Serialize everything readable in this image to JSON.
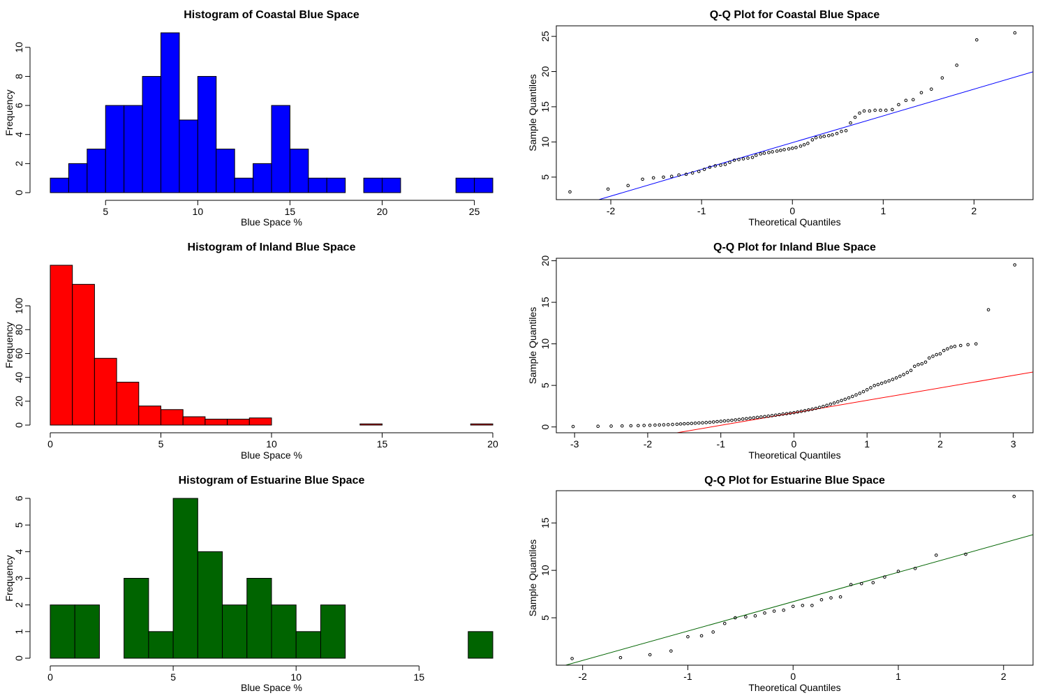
{
  "chart_data": [
    {
      "type": "bar",
      "title": "Histogram of Coastal Blue Space",
      "xlabel": "Blue Space %",
      "ylabel": "Frequency",
      "color": "#0000ff",
      "bin_edges": [
        2,
        3,
        4,
        5,
        6,
        7,
        8,
        9,
        10,
        11,
        12,
        13,
        14,
        15,
        16,
        17,
        18,
        19,
        20,
        21,
        22,
        23,
        24,
        25,
        26
      ],
      "values": [
        1,
        2,
        3,
        6,
        6,
        8,
        11,
        5,
        8,
        3,
        1,
        2,
        6,
        3,
        1,
        1,
        0,
        1,
        1,
        0,
        0,
        0,
        1,
        1
      ],
      "xlim": [
        2,
        26
      ],
      "ylim": [
        0,
        11
      ],
      "xticks": [
        "5",
        "10",
        "15",
        "20",
        "25"
      ],
      "yticks": [
        "0",
        "2",
        "4",
        "6",
        "8",
        "10"
      ]
    },
    {
      "type": "scatter",
      "title": "Q-Q Plot for Coastal Blue Space",
      "xlabel": "Theoretical Quantiles",
      "ylabel": "Sample Quantiles",
      "line_color": "#0000ff",
      "line": {
        "intercept": 9.9,
        "slope": 3.8
      },
      "xlim": [
        -2.6,
        2.65
      ],
      "ylim": [
        1.8,
        26.5
      ],
      "xticks": [
        "-2",
        "-1",
        "0",
        "1",
        "2"
      ],
      "yticks": [
        "5",
        "10",
        "15",
        "20",
        "25"
      ],
      "x": [
        -2.45,
        -2.03,
        -1.81,
        -1.65,
        -1.53,
        -1.42,
        -1.33,
        -1.25,
        -1.17,
        -1.1,
        -1.03,
        -0.97,
        -0.91,
        -0.85,
        -0.79,
        -0.74,
        -0.69,
        -0.64,
        -0.59,
        -0.54,
        -0.49,
        -0.44,
        -0.4,
        -0.35,
        -0.31,
        -0.26,
        -0.22,
        -0.17,
        -0.13,
        -0.09,
        -0.04,
        0.0,
        0.04,
        0.09,
        0.13,
        0.17,
        0.22,
        0.26,
        0.31,
        0.35,
        0.4,
        0.44,
        0.49,
        0.54,
        0.59,
        0.64,
        0.69,
        0.74,
        0.79,
        0.85,
        0.91,
        0.97,
        1.03,
        1.1,
        1.17,
        1.25,
        1.33,
        1.42,
        1.53,
        1.65,
        1.81,
        2.03,
        2.45
      ],
      "y": [
        2.9,
        3.3,
        3.8,
        4.7,
        4.9,
        5.0,
        5.1,
        5.3,
        5.4,
        5.6,
        5.8,
        6.1,
        6.4,
        6.6,
        6.7,
        6.8,
        7.1,
        7.4,
        7.5,
        7.6,
        7.7,
        7.8,
        8.1,
        8.3,
        8.4,
        8.5,
        8.6,
        8.7,
        8.8,
        8.9,
        9.0,
        9.1,
        9.2,
        9.4,
        9.6,
        9.8,
        10.3,
        10.6,
        10.7,
        10.8,
        10.9,
        11.0,
        11.2,
        11.5,
        11.6,
        12.7,
        13.5,
        14.1,
        14.4,
        14.4,
        14.5,
        14.5,
        14.5,
        14.6,
        15.3,
        15.9,
        16.0,
        17.0,
        17.5,
        19.1,
        20.9,
        24.5,
        25.5
      ]
    },
    {
      "type": "bar",
      "title": "Histogram of Inland Blue Space",
      "xlabel": "Blue Space %",
      "ylabel": "Frequency",
      "color": "#ff0000",
      "bin_edges": [
        0,
        1,
        2,
        3,
        4,
        5,
        6,
        7,
        8,
        9,
        10,
        11,
        12,
        13,
        14,
        15,
        16,
        17,
        18,
        19,
        20
      ],
      "values": [
        134,
        118,
        56,
        36,
        16,
        13,
        7,
        5,
        5,
        6,
        0,
        0,
        0,
        0,
        1,
        0,
        0,
        0,
        0,
        1
      ],
      "xlim": [
        0,
        20
      ],
      "ylim": [
        0,
        134
      ],
      "xticks": [
        "0",
        "5",
        "10",
        "15",
        "20"
      ],
      "yticks": [
        "0",
        "20",
        "40",
        "60",
        "80",
        "100"
      ]
    },
    {
      "type": "scatter",
      "title": "Q-Q Plot for Inland Blue Space",
      "xlabel": "Theoretical Quantiles",
      "ylabel": "Sample Quantiles",
      "line_color": "#ff0000",
      "line": {
        "intercept": 1.7,
        "slope": 1.5
      },
      "xlim": [
        -3.25,
        3.27
      ],
      "ylim": [
        -0.7,
        20.3
      ],
      "xticks": [
        "-3",
        "-2",
        "-1",
        "0",
        "1",
        "2",
        "3"
      ],
      "yticks": [
        "0",
        "5",
        "10",
        "15",
        "20"
      ],
      "x": [
        -3.02,
        -2.68,
        -2.5,
        -2.35,
        -2.23,
        -2.13,
        -2.05,
        -1.97,
        -1.9,
        -1.84,
        -1.78,
        -1.72,
        -1.66,
        -1.6,
        -1.55,
        -1.5,
        -1.45,
        -1.4,
        -1.35,
        -1.3,
        -1.25,
        -1.2,
        -1.15,
        -1.1,
        -1.05,
        -1.0,
        -0.95,
        -0.9,
        -0.85,
        -0.8,
        -0.75,
        -0.7,
        -0.65,
        -0.6,
        -0.55,
        -0.5,
        -0.45,
        -0.4,
        -0.35,
        -0.3,
        -0.25,
        -0.2,
        -0.15,
        -0.1,
        -0.05,
        0.0,
        0.05,
        0.1,
        0.15,
        0.2,
        0.25,
        0.3,
        0.35,
        0.4,
        0.45,
        0.5,
        0.55,
        0.6,
        0.65,
        0.7,
        0.75,
        0.8,
        0.85,
        0.9,
        0.95,
        1.0,
        1.05,
        1.1,
        1.15,
        1.2,
        1.25,
        1.3,
        1.35,
        1.4,
        1.45,
        1.5,
        1.55,
        1.6,
        1.65,
        1.7,
        1.75,
        1.8,
        1.85,
        1.9,
        1.95,
        2.0,
        2.05,
        2.1,
        2.15,
        2.2,
        2.28,
        2.38,
        2.49,
        2.66,
        3.02
      ],
      "y": [
        0.05,
        0.08,
        0.1,
        0.12,
        0.14,
        0.16,
        0.18,
        0.2,
        0.22,
        0.24,
        0.26,
        0.28,
        0.3,
        0.33,
        0.36,
        0.38,
        0.4,
        0.42,
        0.45,
        0.48,
        0.5,
        0.53,
        0.56,
        0.6,
        0.64,
        0.68,
        0.72,
        0.76,
        0.8,
        0.85,
        0.9,
        0.95,
        1.0,
        1.05,
        1.1,
        1.15,
        1.2,
        1.25,
        1.3,
        1.36,
        1.42,
        1.48,
        1.55,
        1.6,
        1.66,
        1.72,
        1.8,
        1.88,
        1.96,
        2.05,
        2.14,
        2.24,
        2.35,
        2.47,
        2.6,
        2.74,
        2.88,
        3.03,
        3.18,
        3.33,
        3.5,
        3.67,
        3.86,
        4.05,
        4.25,
        4.48,
        4.72,
        4.98,
        5.1,
        5.25,
        5.4,
        5.55,
        5.72,
        5.9,
        6.1,
        6.3,
        6.55,
        6.8,
        7.3,
        7.5,
        7.6,
        7.8,
        8.3,
        8.5,
        8.7,
        8.8,
        9.2,
        9.4,
        9.6,
        9.7,
        9.8,
        9.9,
        10.0,
        14.1,
        19.5
      ]
    },
    {
      "type": "bar",
      "title": "Histogram of Estuarine Blue Space",
      "xlabel": "Blue Space %",
      "ylabel": "Frequency",
      "color": "#006400",
      "bin_edges": [
        0,
        1,
        2,
        3,
        4,
        5,
        6,
        7,
        8,
        9,
        10,
        11,
        12,
        13,
        14,
        15,
        16,
        17,
        18
      ],
      "values": [
        2,
        2,
        0,
        3,
        1,
        6,
        4,
        2,
        3,
        2,
        1,
        2,
        0,
        0,
        0,
        0,
        0,
        1
      ],
      "xlim": [
        0,
        18
      ],
      "ylim": [
        0,
        6
      ],
      "xticks": [
        "0",
        "5",
        "10",
        "15"
      ],
      "yticks": [
        "0",
        "1",
        "2",
        "3",
        "4",
        "5",
        "6"
      ]
    },
    {
      "type": "scatter",
      "title": "Q-Q Plot for Estuarine Blue Space",
      "xlabel": "Theoretical Quantiles",
      "ylabel": "Sample Quantiles",
      "line_color": "#006400",
      "line": {
        "intercept": 6.7,
        "slope": 3.1
      },
      "xlim": [
        -2.25,
        2.28
      ],
      "ylim": [
        0.0,
        18.4
      ],
      "xticks": [
        "-2",
        "-1",
        "0",
        "1",
        "2"
      ],
      "yticks": [
        "5",
        "10",
        "15"
      ],
      "x": [
        -2.1,
        -1.64,
        -1.36,
        -1.16,
        -1.0,
        -0.87,
        -0.76,
        -0.65,
        -0.55,
        -0.45,
        -0.36,
        -0.27,
        -0.18,
        -0.09,
        0.0,
        0.09,
        0.18,
        0.27,
        0.36,
        0.45,
        0.55,
        0.65,
        0.76,
        0.87,
        1.0,
        1.16,
        1.36,
        1.64,
        2.1
      ],
      "y": [
        0.7,
        0.8,
        1.1,
        1.5,
        3.0,
        3.1,
        3.5,
        4.4,
        5.0,
        5.1,
        5.2,
        5.5,
        5.7,
        5.8,
        6.2,
        6.3,
        6.3,
        6.9,
        7.1,
        7.2,
        8.5,
        8.6,
        8.7,
        9.3,
        9.9,
        10.2,
        11.6,
        11.7,
        17.8
      ]
    }
  ]
}
